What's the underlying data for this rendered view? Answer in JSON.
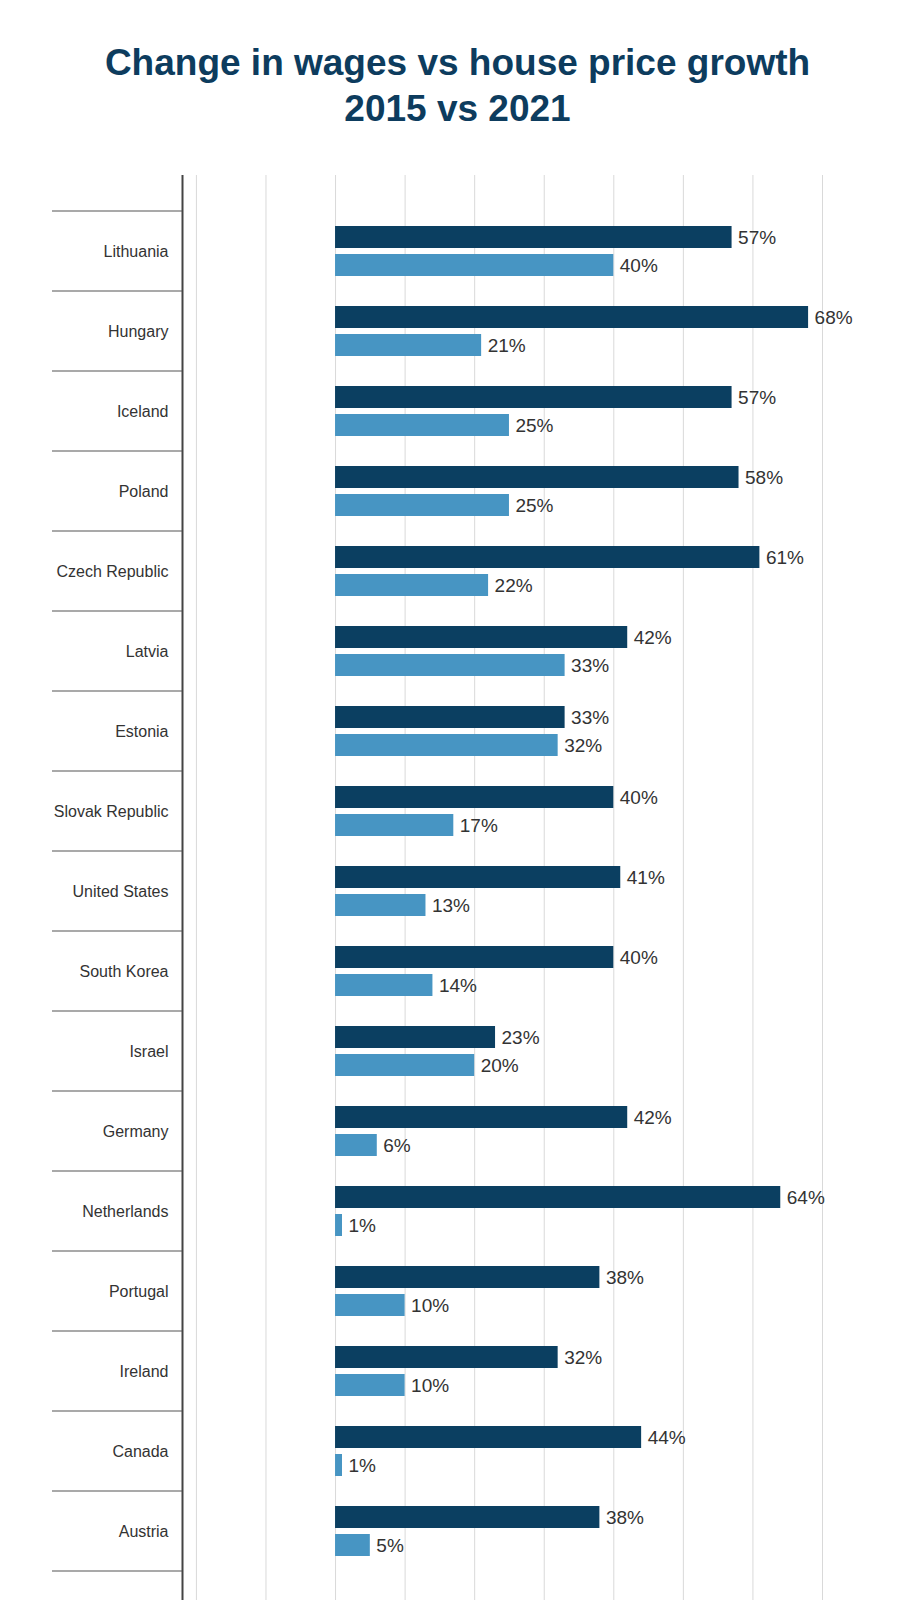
{
  "chart_data": {
    "type": "bar",
    "title": [
      "Change in wages vs house price growth",
      "2015 vs 2021"
    ],
    "orientation": "horizontal",
    "categories": [
      "Lithuania",
      "Hungary",
      "Iceland",
      "Poland",
      "Czech Republic",
      "Latvia",
      "Estonia",
      "Slovak Republic",
      "United States",
      "South Korea",
      "Israel",
      "Germany",
      "Netherlands",
      "Portugal",
      "Ireland",
      "Canada",
      "Austria"
    ],
    "series": [
      {
        "color": "#0b3f61",
        "values": [
          57,
          68,
          57,
          58,
          61,
          42,
          33,
          40,
          41,
          40,
          23,
          42,
          64,
          38,
          32,
          44,
          38
        ],
        "value_labels": [
          "57%",
          "68%",
          "57%",
          "58%",
          "61%",
          "42%",
          "33%",
          "40%",
          "41%",
          "40%",
          "23%",
          "42%",
          "64%",
          "38%",
          "32%",
          "44%",
          "38%"
        ]
      },
      {
        "color": "#4795c3",
        "values": [
          40,
          21,
          25,
          25,
          22,
          33,
          32,
          17,
          13,
          14,
          20,
          6,
          1,
          10,
          10,
          1,
          5
        ],
        "value_labels": [
          "40%",
          "21%",
          "25%",
          "25%",
          "22%",
          "33%",
          "32%",
          "17%",
          "13%",
          "14%",
          "20%",
          "6%",
          "1%",
          "10%",
          "10%",
          "1%",
          "5%"
        ]
      }
    ],
    "xlim": [
      -22,
      70
    ],
    "xticks": [
      -20,
      -10,
      0,
      10,
      20,
      30,
      40,
      50,
      60,
      70
    ],
    "grid": true,
    "data_labels": true,
    "tick_labels": "y"
  }
}
